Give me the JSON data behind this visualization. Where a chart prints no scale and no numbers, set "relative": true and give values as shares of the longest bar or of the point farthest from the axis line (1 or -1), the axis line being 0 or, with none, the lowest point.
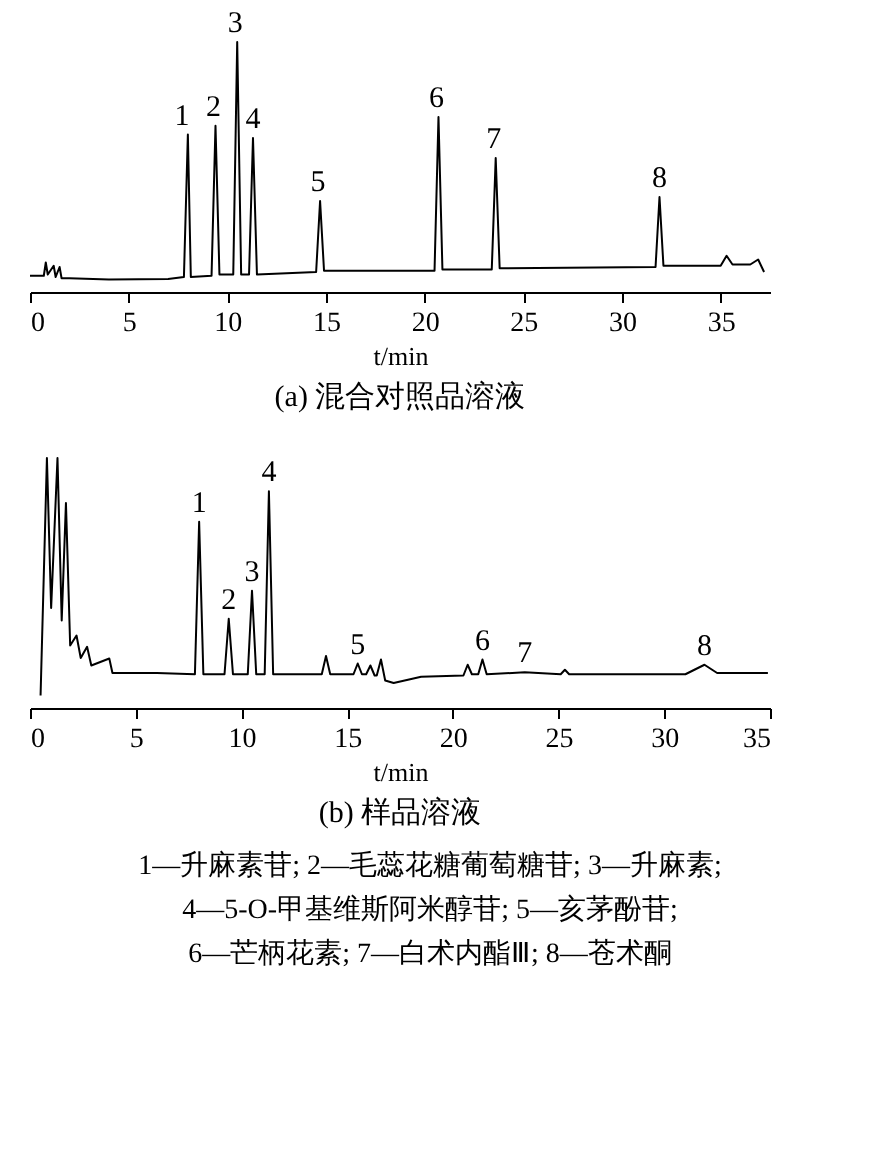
{
  "chart_data": [
    {
      "type": "line",
      "relative": true,
      "title": "(a) 混合对照品溶液",
      "xlabel": "t/min",
      "xlim": [
        0,
        37.5
      ],
      "xticks": [
        0,
        5,
        10,
        15,
        20,
        25,
        30,
        35
      ],
      "grid": false,
      "marker": "none",
      "line_style": "solid",
      "series": [
        {
          "color": "#000000",
          "x": [
            0,
            0.7,
            0.8,
            0.9,
            1.2,
            1.3,
            1.5,
            1.6,
            2,
            4,
            7,
            7.8,
            8.0,
            8.15,
            9.2,
            9.4,
            9.6,
            10.3,
            10.5,
            10.7,
            11.1,
            11.3,
            11.5,
            14.5,
            14.7,
            14.9,
            20.5,
            20.7,
            20.9,
            23.4,
            23.6,
            23.8,
            31.7,
            31.9,
            32.1,
            35.0,
            35.3,
            35.6,
            36.5,
            36.9,
            37.2
          ],
          "values": [
            0.065,
            0.065,
            0.118,
            0.07,
            0.105,
            0.06,
            0.1,
            0.055,
            0.055,
            0.05,
            0.052,
            0.06,
            0.63,
            0.06,
            0.065,
            0.665,
            0.07,
            0.07,
            1,
            0.07,
            0.07,
            0.616,
            0.07,
            0.08,
            0.364,
            0.085,
            0.085,
            0.7,
            0.09,
            0.09,
            0.536,
            0.095,
            0.1,
            0.38,
            0.105,
            0.105,
            0.145,
            0.11,
            0.11,
            0.13,
            0.08
          ]
        }
      ],
      "annotations": [
        {
          "text": "1",
          "x": 7.7,
          "y": 0.63
        },
        {
          "text": "2",
          "x": 9.3,
          "y": 0.665
        },
        {
          "text": "3",
          "x": 10.4,
          "y": 1
        },
        {
          "text": "4",
          "x": 11.3,
          "y": 0.616
        },
        {
          "text": "5",
          "x": 14.6,
          "y": 0.364
        },
        {
          "text": "6",
          "x": 20.6,
          "y": 0.7
        },
        {
          "text": "7",
          "x": 23.5,
          "y": 0.536
        },
        {
          "text": "8",
          "x": 31.9,
          "y": 0.38
        }
      ]
    },
    {
      "type": "line",
      "relative": true,
      "title": "(b) 样品溶液",
      "xlabel": "t/min",
      "xlim": [
        0,
        35
      ],
      "xticks": [
        0,
        5,
        10,
        15,
        20,
        25,
        30,
        35
      ],
      "grid": false,
      "marker": "none",
      "line_style": "solid",
      "series": [
        {
          "color": "#000000",
          "x": [
            0.5,
            0.8,
            1.0,
            1.3,
            1.5,
            1.7,
            1.9,
            2.2,
            2.4,
            2.7,
            2.9,
            3.75,
            3.9,
            6,
            7.8,
            8,
            8.2,
            9.2,
            9.4,
            9.6,
            10.3,
            10.5,
            10.7,
            11.1,
            11.3,
            11.5,
            13.8,
            14.0,
            14.2,
            15.3,
            15.5,
            15.7,
            15.9,
            16.1,
            16.3,
            16.4,
            16.6,
            16.8,
            17.2,
            18.5,
            20.5,
            20.7,
            20.9,
            21.2,
            21.4,
            21.6,
            23.4,
            25.1,
            25.3,
            25.5,
            31,
            31.9,
            32.5,
            34.9
          ],
          "values": [
            0.05,
            1,
            0.4,
            1,
            0.35,
            0.82,
            0.25,
            0.29,
            0.2,
            0.245,
            0.17,
            0.198,
            0.14,
            0.14,
            0.135,
            0.745,
            0.135,
            0.135,
            0.357,
            0.135,
            0.135,
            0.469,
            0.135,
            0.135,
            0.867,
            0.135,
            0.135,
            0.208,
            0.135,
            0.135,
            0.178,
            0.135,
            0.135,
            0.17,
            0.13,
            0.13,
            0.194,
            0.11,
            0.1,
            0.125,
            0.13,
            0.173,
            0.135,
            0.135,
            0.194,
            0.135,
            0.143,
            0.135,
            0.153,
            0.135,
            0.135,
            0.173,
            0.14,
            0.14
          ]
        }
      ],
      "annotations": [
        {
          "text": "1",
          "x": 8,
          "y": 0.745
        },
        {
          "text": "2",
          "x": 9.4,
          "y": 0.357
        },
        {
          "text": "3",
          "x": 10.5,
          "y": 0.469
        },
        {
          "text": "4",
          "x": 11.3,
          "y": 0.867
        },
        {
          "text": "5",
          "x": 15.5,
          "y": 0.178
        },
        {
          "text": "6",
          "x": 21.4,
          "y": 0.194
        },
        {
          "text": "7",
          "x": 23.4,
          "y": 0.143
        },
        {
          "text": "8",
          "x": 31.9,
          "y": 0.173
        },
        "1—升麻素苷; 2—毛蕊花糖葡萄糖苷; 3—升麻素;",
        "4—5-O-甲基维斯阿米醇苷; 5—亥茅酚苷;",
        "6—芒柄花素; 7—白术内酯Ⅲ; 8—苍术酮"
      ]
    }
  ]
}
